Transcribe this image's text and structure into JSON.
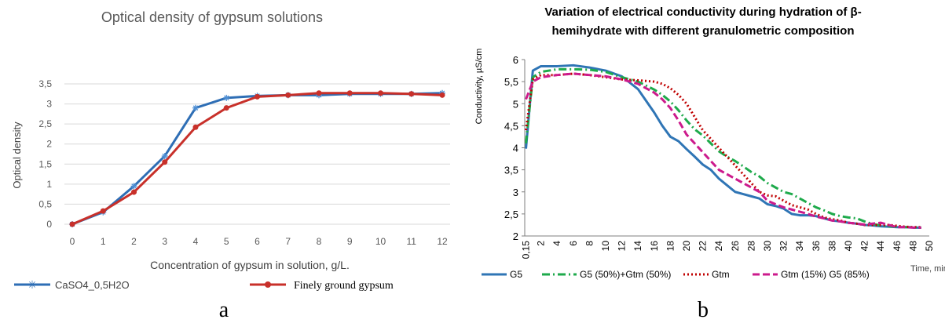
{
  "panels": {
    "a": {
      "caption": "a"
    },
    "b": {
      "caption": "b"
    }
  },
  "chart_data": [
    {
      "id": "a",
      "type": "line",
      "title": "Optical density of gypsum solutions",
      "xlabel": "Concentration of gypsum in solution, g/L.",
      "ylabel": "Optical density",
      "categories": [
        "0",
        "1",
        "2",
        "3",
        "4",
        "5",
        "6",
        "7",
        "8",
        "9",
        "10",
        "11",
        "12"
      ],
      "ylim": [
        0,
        3.5
      ],
      "yticks": [
        "0",
        "0,5",
        "1",
        "1,5",
        "2",
        "2,5",
        "3",
        "3,5"
      ],
      "grid": true,
      "legend": "bottom",
      "series": [
        {
          "name": "CaSO4_0,5H2O",
          "color": "#2e6eb5",
          "marker": "star",
          "values": [
            0,
            0.3,
            0.95,
            1.7,
            2.9,
            3.15,
            3.2,
            3.22,
            3.22,
            3.25,
            3.25,
            3.25,
            3.27
          ]
        },
        {
          "name": "Finely ground gypsum",
          "color": "#c8302a",
          "marker": "circle",
          "values": [
            0,
            0.33,
            0.8,
            1.55,
            2.42,
            2.9,
            3.18,
            3.22,
            3.27,
            3.27,
            3.27,
            3.25,
            3.22
          ]
        }
      ]
    },
    {
      "id": "b",
      "type": "line",
      "title": "Variation of electrical conductivity during hydration of β-hemihydrate with different granulometric composition",
      "title_lines": [
        "Variation of electrical conductivity during hydration of β-",
        "hemihydrate with different granulometric composition"
      ],
      "xlabel": "Time, min",
      "ylabel": "Conductivity, µS/cm",
      "ylim": [
        2,
        6
      ],
      "xlim": [
        0,
        50
      ],
      "yticks": [
        "2",
        "2,5",
        "3",
        "3,5",
        "4",
        "4,5",
        "5",
        "5,5",
        "6"
      ],
      "xticks": [
        "0,15",
        "2",
        "4",
        "6",
        "8",
        "10",
        "12",
        "14",
        "16",
        "18",
        "20",
        "22",
        "24",
        "26",
        "28",
        "30",
        "32",
        "34",
        "36",
        "38",
        "40",
        "42",
        "44",
        "46",
        "48",
        "50"
      ],
      "grid": false,
      "legend": "bottom",
      "series": [
        {
          "name": "G5",
          "color": "#2f75b5",
          "dash": "solid",
          "x": [
            0.15,
            1,
            2,
            4,
            6,
            8,
            10,
            12,
            14,
            16,
            17,
            18,
            19,
            20,
            21,
            22,
            23,
            24,
            25,
            26,
            27,
            28,
            29,
            30,
            31,
            32,
            33,
            34,
            35,
            36,
            37,
            38,
            39,
            40,
            41,
            42,
            43,
            44,
            45,
            46,
            47,
            48,
            49
          ],
          "y": [
            3.98,
            5.75,
            5.85,
            5.85,
            5.87,
            5.82,
            5.75,
            5.62,
            5.33,
            4.8,
            4.5,
            4.25,
            4.15,
            3.97,
            3.8,
            3.62,
            3.5,
            3.3,
            3.15,
            3.0,
            2.95,
            2.9,
            2.85,
            2.72,
            2.68,
            2.62,
            2.5,
            2.47,
            2.47,
            2.45,
            2.4,
            2.35,
            2.33,
            2.3,
            2.28,
            2.25,
            2.24,
            2.22,
            2.21,
            2.2,
            2.2,
            2.19,
            2.19
          ]
        },
        {
          "name": "G5 (50%)+Gtm (50%)",
          "color": "#1eaa4b",
          "dash": "dashdot",
          "x": [
            0.15,
            1,
            2,
            4,
            6,
            8,
            10,
            12,
            14,
            16,
            17,
            18,
            19,
            20,
            21,
            22,
            23,
            24,
            25,
            26,
            27,
            28,
            29,
            30,
            31,
            32,
            33,
            34,
            35,
            36,
            37,
            38,
            39,
            40,
            41,
            42,
            43,
            44,
            45,
            46,
            47,
            48,
            49
          ],
          "y": [
            4.1,
            5.6,
            5.72,
            5.78,
            5.78,
            5.77,
            5.72,
            5.6,
            5.5,
            5.32,
            5.2,
            5.05,
            4.85,
            4.62,
            4.42,
            4.28,
            4.1,
            3.92,
            3.8,
            3.7,
            3.58,
            3.45,
            3.35,
            3.2,
            3.1,
            3.0,
            2.95,
            2.85,
            2.75,
            2.65,
            2.58,
            2.5,
            2.45,
            2.42,
            2.4,
            2.33,
            2.27,
            2.24,
            2.22,
            2.21,
            2.2,
            2.2,
            2.19
          ]
        },
        {
          "name": "Gtm",
          "color": "#c00000",
          "dash": "dot",
          "x": [
            0.15,
            1,
            2,
            4,
            6,
            8,
            10,
            12,
            14,
            16,
            17,
            18,
            19,
            20,
            21,
            22,
            23,
            24,
            25,
            26,
            27,
            28,
            29,
            30,
            31,
            32,
            33,
            34,
            35,
            36,
            37,
            38,
            39,
            40,
            41,
            42,
            43,
            44,
            45,
            46,
            47,
            48,
            49
          ],
          "y": [
            4.4,
            5.55,
            5.65,
            5.65,
            5.68,
            5.65,
            5.6,
            5.55,
            5.53,
            5.5,
            5.45,
            5.35,
            5.2,
            5.0,
            4.7,
            4.4,
            4.2,
            4.0,
            3.8,
            3.6,
            3.4,
            3.2,
            3.0,
            2.92,
            2.9,
            2.8,
            2.7,
            2.65,
            2.6,
            2.5,
            2.42,
            2.38,
            2.35,
            2.3,
            2.28,
            2.25,
            2.25,
            2.25,
            2.25,
            2.23,
            2.21,
            2.2,
            2.2
          ]
        },
        {
          "name": "Gtm (15%) G5 (85%)",
          "color": "#cc1a8c",
          "dash": "dash",
          "x": [
            0.15,
            1,
            2,
            4,
            6,
            8,
            10,
            12,
            14,
            16,
            17,
            18,
            19,
            20,
            21,
            22,
            23,
            24,
            25,
            26,
            27,
            28,
            29,
            30,
            31,
            32,
            33,
            34,
            35,
            36,
            37,
            38,
            39,
            40,
            41,
            42,
            43,
            44,
            45,
            46,
            47,
            48,
            49
          ],
          "y": [
            5.1,
            5.5,
            5.6,
            5.65,
            5.68,
            5.65,
            5.62,
            5.55,
            5.45,
            5.25,
            5.1,
            4.9,
            4.62,
            4.3,
            4.1,
            3.9,
            3.7,
            3.5,
            3.4,
            3.3,
            3.2,
            3.1,
            3.0,
            2.8,
            2.72,
            2.65,
            2.6,
            2.55,
            2.5,
            2.44,
            2.4,
            2.35,
            2.33,
            2.3,
            2.28,
            2.26,
            2.28,
            2.3,
            2.25,
            2.2,
            2.2,
            2.19,
            2.19
          ]
        }
      ]
    }
  ]
}
